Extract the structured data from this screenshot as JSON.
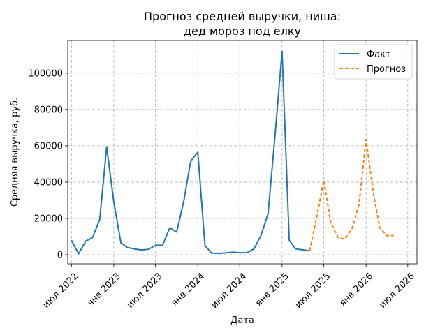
{
  "chart_data": {
    "type": "line",
    "title": [
      "Прогноз средней выручки, ниша:",
      "дед мороз под елку"
    ],
    "xlabel": "Дата",
    "ylabel": "Средняя выручка, руб.",
    "xlim": [
      "2022-06-15",
      "2026-08-10"
    ],
    "ylim": [
      -5000,
      118000
    ],
    "x_ticks": [
      {
        "date": "2022-07-01",
        "label": "июл 2022"
      },
      {
        "date": "2023-01-01",
        "label": "янв 2023"
      },
      {
        "date": "2023-07-01",
        "label": "июл 2023"
      },
      {
        "date": "2024-01-01",
        "label": "янв 2024"
      },
      {
        "date": "2024-07-01",
        "label": "июл 2024"
      },
      {
        "date": "2025-01-01",
        "label": "янв 2025"
      },
      {
        "date": "2025-07-01",
        "label": "июл 2025"
      },
      {
        "date": "2026-01-01",
        "label": "янв 2026"
      },
      {
        "date": "2026-07-01",
        "label": "июл 2026"
      }
    ],
    "y_ticks": [
      0,
      20000,
      40000,
      60000,
      80000,
      100000
    ],
    "grid": true,
    "legend_position": "top-right",
    "series": [
      {
        "name": "Факт",
        "color": "#1f77b4",
        "style": "solid",
        "points": [
          [
            "2022-07-01",
            8000
          ],
          [
            "2022-08-01",
            500
          ],
          [
            "2022-09-01",
            7500
          ],
          [
            "2022-10-01",
            9500
          ],
          [
            "2022-11-01",
            19500
          ],
          [
            "2022-12-01",
            59500
          ],
          [
            "2023-01-01",
            29000
          ],
          [
            "2023-02-01",
            6500
          ],
          [
            "2023-03-01",
            4000
          ],
          [
            "2023-04-01",
            3200
          ],
          [
            "2023-05-01",
            2600
          ],
          [
            "2023-06-01",
            3000
          ],
          [
            "2023-07-01",
            5200
          ],
          [
            "2023-08-01",
            5300
          ],
          [
            "2023-09-01",
            14800
          ],
          [
            "2023-10-01",
            12500
          ],
          [
            "2023-11-01",
            29500
          ],
          [
            "2023-12-01",
            51500
          ],
          [
            "2024-01-01",
            56500
          ],
          [
            "2024-02-01",
            5000
          ],
          [
            "2024-03-01",
            900
          ],
          [
            "2024-04-01",
            700
          ],
          [
            "2024-05-01",
            1000
          ],
          [
            "2024-06-01",
            1400
          ],
          [
            "2024-07-01",
            1100
          ],
          [
            "2024-08-01",
            1100
          ],
          [
            "2024-09-01",
            3200
          ],
          [
            "2024-10-01",
            10500
          ],
          [
            "2024-11-01",
            22500
          ],
          [
            "2024-12-01",
            65000
          ],
          [
            "2025-01-01",
            112000
          ],
          [
            "2025-02-01",
            8000
          ],
          [
            "2025-03-01",
            3200
          ],
          [
            "2025-04-01",
            2700
          ],
          [
            "2025-05-01",
            2200
          ]
        ]
      },
      {
        "name": "Прогноз",
        "color": "#ff7f0e",
        "style": "dashed",
        "points": [
          [
            "2025-05-01",
            2200
          ],
          [
            "2025-06-01",
            21000
          ],
          [
            "2025-07-01",
            41000
          ],
          [
            "2025-08-01",
            17500
          ],
          [
            "2025-09-01",
            9500
          ],
          [
            "2025-10-01",
            8500
          ],
          [
            "2025-11-01",
            14500
          ],
          [
            "2025-12-01",
            27500
          ],
          [
            "2026-01-01",
            63500
          ],
          [
            "2026-02-01",
            34500
          ],
          [
            "2026-03-01",
            15000
          ],
          [
            "2026-04-01",
            10500
          ],
          [
            "2026-05-01",
            10500
          ]
        ]
      }
    ]
  }
}
